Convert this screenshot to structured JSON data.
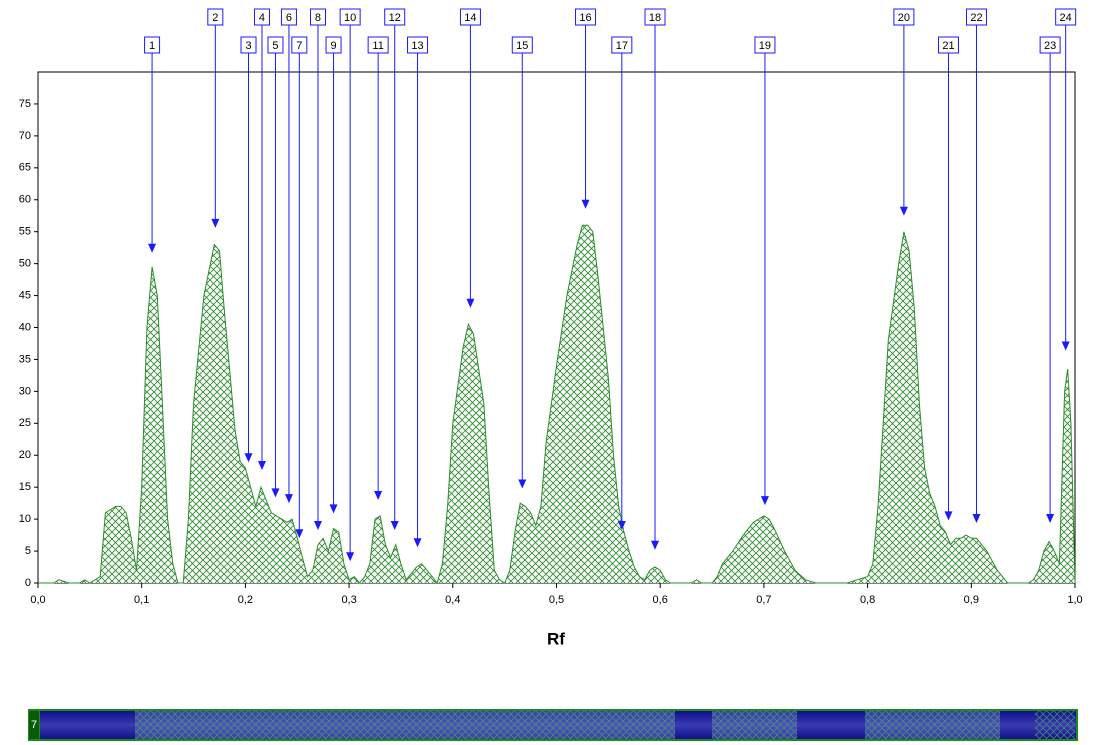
{
  "chart_data": {
    "type": "area",
    "x_label": "Rf",
    "track_label": "7",
    "color": "#2e8b2e",
    "x": [
      0.0,
      0.015,
      0.02,
      0.03,
      0.04,
      0.045,
      0.05,
      0.06,
      0.065,
      0.07,
      0.075,
      0.08,
      0.085,
      0.09,
      0.095,
      0.1,
      0.105,
      0.11,
      0.115,
      0.12,
      0.125,
      0.13,
      0.135,
      0.14,
      0.145,
      0.15,
      0.16,
      0.17,
      0.175,
      0.18,
      0.19,
      0.195,
      0.2,
      0.205,
      0.21,
      0.215,
      0.22,
      0.225,
      0.23,
      0.235,
      0.24,
      0.245,
      0.25,
      0.255,
      0.26,
      0.265,
      0.27,
      0.275,
      0.28,
      0.285,
      0.29,
      0.295,
      0.3,
      0.305,
      0.31,
      0.315,
      0.32,
      0.325,
      0.33,
      0.335,
      0.34,
      0.345,
      0.35,
      0.355,
      0.36,
      0.365,
      0.37,
      0.375,
      0.38,
      0.385,
      0.39,
      0.395,
      0.4,
      0.41,
      0.415,
      0.42,
      0.43,
      0.435,
      0.44,
      0.445,
      0.45,
      0.455,
      0.46,
      0.465,
      0.47,
      0.475,
      0.48,
      0.485,
      0.49,
      0.5,
      0.51,
      0.52,
      0.525,
      0.53,
      0.535,
      0.54,
      0.55,
      0.555,
      0.56,
      0.565,
      0.57,
      0.575,
      0.58,
      0.585,
      0.59,
      0.595,
      0.6,
      0.605,
      0.61,
      0.63,
      0.635,
      0.64,
      0.65,
      0.655,
      0.66,
      0.67,
      0.68,
      0.69,
      0.7,
      0.705,
      0.71,
      0.72,
      0.73,
      0.74,
      0.75,
      0.78,
      0.79,
      0.8,
      0.805,
      0.81,
      0.815,
      0.82,
      0.83,
      0.835,
      0.84,
      0.845,
      0.85,
      0.855,
      0.86,
      0.865,
      0.87,
      0.875,
      0.88,
      0.885,
      0.89,
      0.895,
      0.9,
      0.905,
      0.91,
      0.915,
      0.92,
      0.925,
      0.93,
      0.935,
      0.955,
      0.96,
      0.965,
      0.97,
      0.975,
      0.98,
      0.985,
      0.99,
      0.993,
      0.996,
      1.0
    ],
    "values": [
      0,
      0,
      0.5,
      0,
      0,
      0.5,
      0,
      1,
      11,
      11.5,
      12,
      12,
      11,
      7,
      2,
      15,
      40,
      49.5,
      45,
      28,
      10,
      3,
      0,
      0,
      10,
      28,
      45,
      53,
      52,
      42,
      24,
      19,
      18,
      15,
      12,
      15,
      13,
      11,
      10.5,
      10,
      9.5,
      10,
      7,
      4,
      1,
      2,
      6,
      7,
      5,
      8.5,
      8,
      3,
      0.5,
      1,
      0,
      1,
      3,
      10,
      10.5,
      6,
      4,
      6,
      3,
      0.5,
      1.5,
      2.5,
      3,
      2,
      1,
      0,
      3,
      12,
      25,
      37,
      40.5,
      39,
      28,
      14,
      2,
      0.5,
      0,
      2,
      8,
      12.5,
      12,
      11,
      9,
      12,
      22,
      34,
      45,
      53,
      56,
      56,
      55,
      48,
      32,
      20,
      12,
      8,
      5,
      2.5,
      1,
      0.5,
      2,
      2.5,
      2,
      0.5,
      0,
      0,
      0.5,
      0,
      0,
      1,
      3,
      5,
      7.5,
      9.5,
      10.5,
      10,
      8.5,
      5,
      2,
      0.5,
      0,
      0,
      0.5,
      1,
      3,
      12,
      25,
      38,
      50,
      55,
      52,
      43,
      28,
      18,
      14,
      12,
      9,
      8,
      6,
      7,
      7,
      7.5,
      7,
      7,
      6,
      5,
      3.5,
      2,
      1,
      0,
      0,
      0.5,
      2,
      5,
      6.5,
      5,
      3,
      30,
      33.5,
      25,
      0
    ],
    "peaks": [
      {
        "label": "1",
        "rf": 0.11,
        "height": 51.7
      },
      {
        "label": "2",
        "rf": 0.171,
        "height": 55.6
      },
      {
        "label": "3",
        "rf": 0.203,
        "height": 18.9
      },
      {
        "label": "4",
        "rf": 0.216,
        "height": 17.7
      },
      {
        "label": "5",
        "rf": 0.229,
        "height": 13.4
      },
      {
        "label": "6",
        "rf": 0.242,
        "height": 12.5
      },
      {
        "label": "7",
        "rf": 0.252,
        "height": 7
      },
      {
        "label": "8",
        "rf": 0.27,
        "height": 8.3
      },
      {
        "label": "9",
        "rf": 0.285,
        "height": 10.9
      },
      {
        "label": "10",
        "rf": 0.301,
        "height": 3.4
      },
      {
        "label": "11",
        "rf": 0.328,
        "height": 13
      },
      {
        "label": "12",
        "rf": 0.344,
        "height": 8.3
      },
      {
        "label": "13",
        "rf": 0.366,
        "height": 5.6
      },
      {
        "label": "14",
        "rf": 0.417,
        "height": 43.1
      },
      {
        "label": "15",
        "rf": 0.467,
        "height": 14.8
      },
      {
        "label": "16",
        "rf": 0.528,
        "height": 58.6
      },
      {
        "label": "17",
        "rf": 0.563,
        "height": 8.3
      },
      {
        "label": "18",
        "rf": 0.595,
        "height": 5.2
      },
      {
        "label": "19",
        "rf": 0.701,
        "height": 12.2
      },
      {
        "label": "20",
        "rf": 0.835,
        "height": 57.5
      },
      {
        "label": "21",
        "rf": 0.878,
        "height": 9.8
      },
      {
        "label": "22",
        "rf": 0.905,
        "height": 9.4
      },
      {
        "label": "23",
        "rf": 0.976,
        "height": 9.4
      },
      {
        "label": "24",
        "rf": 0.991,
        "height": 36.4
      }
    ],
    "xlim": [
      0,
      1
    ],
    "xticks": [
      {
        "value": 0,
        "label": "0,0"
      },
      {
        "value": 0.1,
        "label": "0,1"
      },
      {
        "value": 0.2,
        "label": "0,2"
      },
      {
        "value": 0.3,
        "label": "0,3"
      },
      {
        "value": 0.4,
        "label": "0,4"
      },
      {
        "value": 0.5,
        "label": "0,5"
      },
      {
        "value": 0.6,
        "label": "0,6"
      },
      {
        "value": 0.7,
        "label": "0,7"
      },
      {
        "value": 0.8,
        "label": "0,8"
      },
      {
        "value": 0.9,
        "label": "0,9"
      },
      {
        "value": 1,
        "label": "1,0"
      }
    ],
    "ylim": [
      0,
      80
    ],
    "yticks": [
      0,
      5,
      10,
      15,
      20,
      25,
      30,
      35,
      40,
      45,
      50,
      55,
      60,
      65,
      70,
      75
    ]
  }
}
